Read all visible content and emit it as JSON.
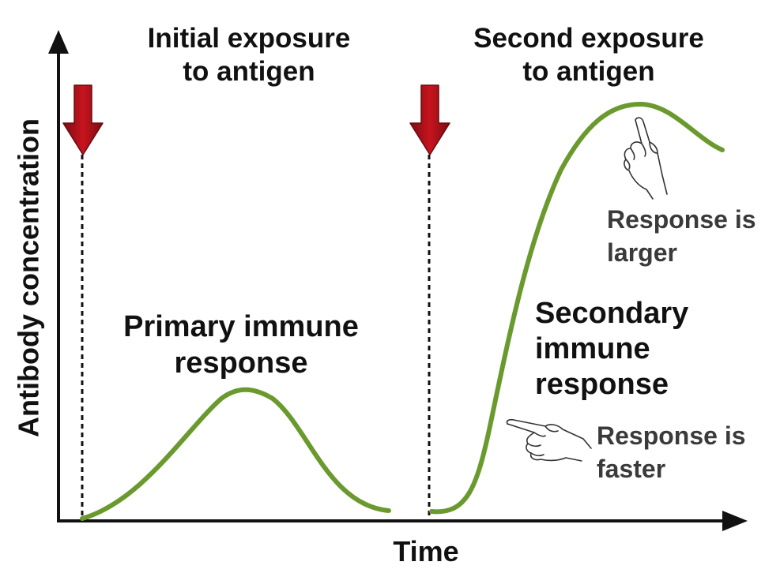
{
  "axes": {
    "y_label": "Antibody concentration",
    "x_label": "Time"
  },
  "events": {
    "first": {
      "line1": "Initial exposure",
      "line2": "to antigen"
    },
    "second": {
      "line1": "Second exposure",
      "line2": "to antigen"
    }
  },
  "primary": {
    "line1": "Primary immune",
    "line2": "response"
  },
  "secondary": {
    "line1": "Secondary",
    "line2": "immune",
    "line3": "response"
  },
  "notes": {
    "larger": {
      "line1": "Response is",
      "line2": "larger"
    },
    "faster": {
      "line1": "Response is",
      "line2": "faster"
    }
  },
  "colors": {
    "curve": "#6a9a2e",
    "arrow": "#b5121b",
    "axis": "#111111",
    "annotation_text": "#3a3a3a"
  },
  "icons": [
    "pointing-hand-up-icon",
    "pointing-hand-left-icon"
  ]
}
